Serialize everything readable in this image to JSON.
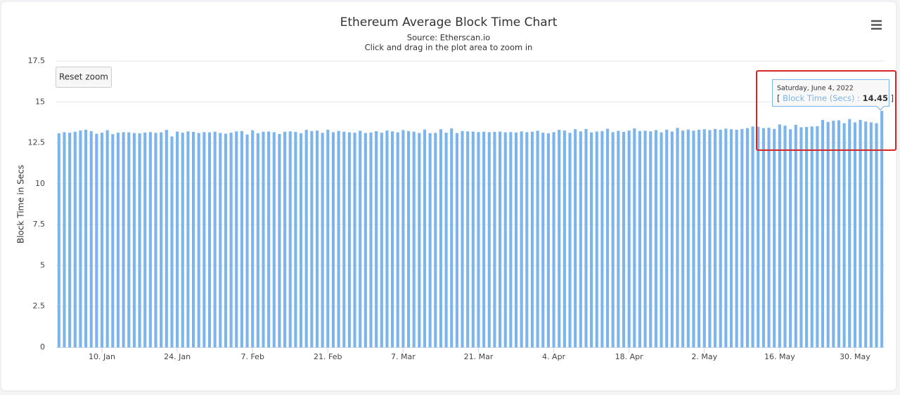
{
  "chart_data": {
    "type": "bar",
    "title": "Ethereum Average Block Time Chart",
    "subtitle": [
      "Source: Etherscan.io",
      "Click and drag in the plot area to zoom in"
    ],
    "button": "Reset zoom",
    "ylabel": "Block Time in Secs",
    "categories": [
      null,
      null,
      null,
      null,
      null,
      null,
      null,
      null,
      "10. Jan",
      null,
      null,
      null,
      null,
      null,
      null,
      null,
      null,
      null,
      null,
      null,
      null,
      null,
      "24. Jan",
      null,
      null,
      null,
      null,
      null,
      null,
      null,
      null,
      null,
      null,
      null,
      null,
      null,
      "7. Feb",
      null,
      null,
      null,
      null,
      null,
      null,
      null,
      null,
      null,
      null,
      null,
      null,
      null,
      "21. Feb",
      null,
      null,
      null,
      null,
      null,
      null,
      null,
      null,
      null,
      null,
      null,
      null,
      null,
      "7. Mar",
      null,
      null,
      null,
      null,
      null,
      null,
      null,
      null,
      null,
      null,
      null,
      null,
      null,
      "21. Mar",
      null,
      null,
      null,
      null,
      null,
      null,
      null,
      null,
      null,
      null,
      null,
      null,
      null,
      "4. Apr",
      null,
      null,
      null,
      null,
      null,
      null,
      null,
      null,
      null,
      null,
      null,
      null,
      null,
      "18. Apr",
      null,
      null,
      null,
      null,
      null,
      null,
      null,
      null,
      null,
      null,
      null,
      null,
      null,
      "2. May",
      null,
      null,
      null,
      null,
      null,
      null,
      null,
      null,
      null,
      null,
      null,
      null,
      null,
      "16. May",
      null,
      null,
      null,
      null,
      null,
      null,
      null,
      null,
      null,
      null,
      null,
      null,
      null,
      "30. May",
      null,
      null,
      null,
      null,
      null
    ],
    "series": [
      {
        "name": "Block Time (Secs)",
        "color": "#7cb5ec",
        "values": [
          13.08,
          13.15,
          13.12,
          13.18,
          13.25,
          13.3,
          13.21,
          13.06,
          13.12,
          13.27,
          13.03,
          13.12,
          13.15,
          13.14,
          13.1,
          13.08,
          13.13,
          13.16,
          13.11,
          13.14,
          13.29,
          12.89,
          13.19,
          13.12,
          13.2,
          13.17,
          13.1,
          13.15,
          13.14,
          13.18,
          13.1,
          13.06,
          13.12,
          13.2,
          13.22,
          13.01,
          13.27,
          13.09,
          13.18,
          13.19,
          13.15,
          13.04,
          13.18,
          13.2,
          13.17,
          13.08,
          13.29,
          13.22,
          13.25,
          13.11,
          13.3,
          13.15,
          13.23,
          13.18,
          13.14,
          13.12,
          13.24,
          13.1,
          13.13,
          13.21,
          13.12,
          13.25,
          13.2,
          13.14,
          13.28,
          13.22,
          13.18,
          13.1,
          13.31,
          13.09,
          13.11,
          13.33,
          13.12,
          13.38,
          13.1,
          13.22,
          13.2,
          13.19,
          13.16,
          13.18,
          13.15,
          13.17,
          13.19,
          13.14,
          13.16,
          13.13,
          13.2,
          13.15,
          13.18,
          13.24,
          13.12,
          13.08,
          13.15,
          13.29,
          13.25,
          13.11,
          13.33,
          13.2,
          13.35,
          13.14,
          13.19,
          13.22,
          13.36,
          13.15,
          13.23,
          13.17,
          13.25,
          13.38,
          13.22,
          13.24,
          13.2,
          13.28,
          13.14,
          13.3,
          13.19,
          13.41,
          13.25,
          13.31,
          13.24,
          13.3,
          13.33,
          13.28,
          13.35,
          13.3,
          13.37,
          13.33,
          13.3,
          13.35,
          13.4,
          13.5,
          13.48,
          13.4,
          13.42,
          13.35,
          13.62,
          13.55,
          13.33,
          13.6,
          13.45,
          13.47,
          13.5,
          13.52,
          13.9,
          13.78,
          13.85,
          13.88,
          13.7,
          13.95,
          13.75,
          13.9,
          13.8,
          13.75,
          13.7,
          14.45
        ]
      }
    ],
    "ylim": [
      0,
      17.5
    ],
    "yticks": [
      0,
      2.5,
      5,
      7.5,
      10,
      12.5,
      15,
      17.5
    ],
    "grid": true,
    "tooltip": {
      "title": "Saturday, June 4, 2022",
      "open": "[",
      "separator": ":",
      "close": "]"
    }
  }
}
